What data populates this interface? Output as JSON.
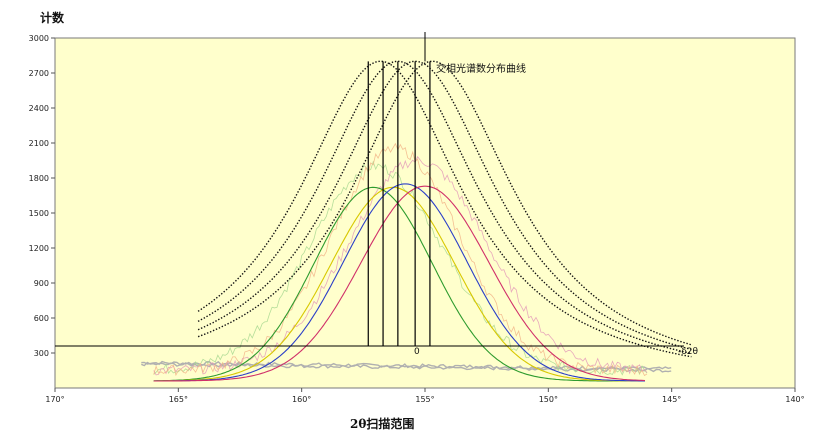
{
  "chart_data": {
    "type": "line",
    "ylabel": "计数",
    "xlabel": "2θ扫描范围",
    "annotation": "交相光谱数分布曲线",
    "zero_label": "0",
    "offset_label": "-δ2θ",
    "x_ticks": [
      "170°",
      "165°",
      "160°",
      "155°",
      "150°",
      "145°",
      "140°"
    ],
    "x_tick_values": [
      170,
      165,
      160,
      155,
      150,
      145,
      140
    ],
    "y_ticks": [
      "300",
      "600",
      "900",
      "1200",
      "1500",
      "1800",
      "2100",
      "2400",
      "2700",
      "3000"
    ],
    "y_tick_values": [
      300,
      600,
      900,
      1200,
      1500,
      1800,
      2100,
      2400,
      2700,
      3000
    ],
    "xlim": [
      170,
      140
    ],
    "ylim": [
      0,
      3000
    ],
    "baseline_y": 360,
    "reference_x": 155,
    "grid": false,
    "colors": {
      "plot_bg": "#ffffcc",
      "frame": "#7a7a7a",
      "dotted_envelopes": "#111111",
      "green": "#2e9b2e",
      "yellow": "#d8c800",
      "blue": "#2b3fc8",
      "red": "#d0306a",
      "pink": "#e49ab8",
      "light_green": "#a8d890",
      "peach": "#f2b487",
      "baseline_gray": "#b0b0b0"
    },
    "envelope_series": [
      {
        "center": 156.8,
        "peak": 2800,
        "sigma": 4.1
      },
      {
        "center": 156.1,
        "peak": 2800,
        "sigma": 4.1
      },
      {
        "center": 155.4,
        "peak": 2800,
        "sigma": 4.1
      },
      {
        "center": 154.7,
        "peak": 2800,
        "sigma": 4.1
      }
    ],
    "peak_series": [
      {
        "color_key": "green",
        "center": 157.1,
        "peak": 1660,
        "sigma": 2.4
      },
      {
        "color_key": "yellow",
        "center": 156.3,
        "peak": 1660,
        "sigma": 2.5
      },
      {
        "color_key": "blue",
        "center": 155.8,
        "peak": 1690,
        "sigma": 2.5
      },
      {
        "color_key": "red",
        "center": 155.0,
        "peak": 1670,
        "sigma": 2.6
      }
    ],
    "noisy_series": [
      {
        "color_key": "light_green",
        "center": 157.0,
        "peak": 1750,
        "sigma": 2.7
      },
      {
        "color_key": "pink",
        "center": 155.3,
        "peak": 1800,
        "sigma": 2.8
      },
      {
        "color_key": "peach",
        "center": 156.2,
        "peak": 1900,
        "sigma": 2.6
      }
    ],
    "vertical_markers": [
      157.3,
      156.7,
      156.1,
      155.4,
      154.8
    ]
  }
}
